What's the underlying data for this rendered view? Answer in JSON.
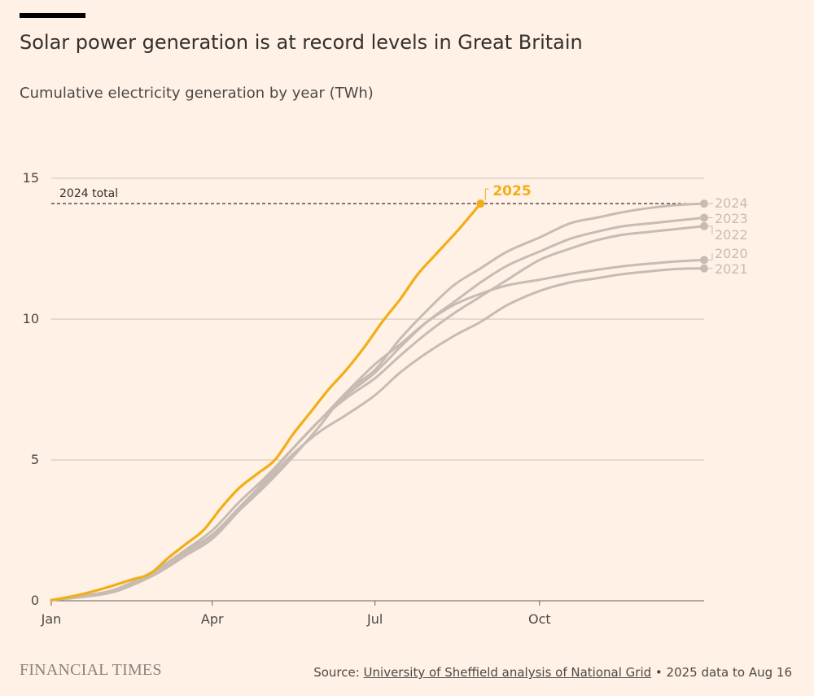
{
  "header": {
    "title": "Solar power generation is at record levels in Great Britain",
    "subtitle": "Cumulative electricity generation by year (TWh)"
  },
  "footer": {
    "logo": "FINANCIAL TIMES",
    "source_prefix": "Source: ",
    "source_link": "University of Sheffield analysis of National Grid",
    "source_suffix": " • 2025 data to Aug 16"
  },
  "colors": {
    "background": "#fff1e5",
    "highlight": "#f2ae18",
    "past_years": "#c7bcb4",
    "gridline": "#ccc1b7",
    "reference_line": "#33302e"
  },
  "chart_data": {
    "type": "line",
    "title": "Solar power generation is at record levels in Great Britain",
    "subtitle": "Cumulative electricity generation by year (TWh)",
    "xlabel": "",
    "ylabel": "",
    "x_ticks": [
      {
        "label": "Jan",
        "day": 0
      },
      {
        "label": "Apr",
        "day": 90
      },
      {
        "label": "Jul",
        "day": 181
      },
      {
        "label": "Oct",
        "day": 273
      }
    ],
    "y_ticks": [
      0,
      5,
      10,
      15
    ],
    "ylim": [
      0,
      15
    ],
    "xlim_days": [
      0,
      365
    ],
    "grid": true,
    "legend": "direct labels at line ends (right)",
    "reference_line": {
      "label": "2024 total",
      "value": 14.1
    },
    "series": [
      {
        "name": "2020",
        "highlight": false,
        "points": [
          [
            0,
            0.02
          ],
          [
            30,
            0.25
          ],
          [
            45,
            0.6
          ],
          [
            60,
            1.1
          ],
          [
            75,
            1.7
          ],
          [
            90,
            2.3
          ],
          [
            105,
            3.3
          ],
          [
            120,
            4.3
          ],
          [
            135,
            5.4
          ],
          [
            150,
            6.4
          ],
          [
            165,
            7.4
          ],
          [
            181,
            8.4
          ],
          [
            195,
            9.1
          ],
          [
            210,
            9.9
          ],
          [
            225,
            10.5
          ],
          [
            240,
            10.9
          ],
          [
            255,
            11.2
          ],
          [
            273,
            11.4
          ],
          [
            290,
            11.6
          ],
          [
            305,
            11.75
          ],
          [
            320,
            11.88
          ],
          [
            335,
            11.97
          ],
          [
            350,
            12.05
          ],
          [
            365,
            12.1
          ]
        ]
      },
      {
        "name": "2021",
        "highlight": false,
        "points": [
          [
            0,
            0.02
          ],
          [
            30,
            0.25
          ],
          [
            45,
            0.55
          ],
          [
            60,
            1.0
          ],
          [
            75,
            1.6
          ],
          [
            90,
            2.2
          ],
          [
            105,
            3.2
          ],
          [
            120,
            4.2
          ],
          [
            135,
            5.2
          ],
          [
            150,
            6.0
          ],
          [
            165,
            6.6
          ],
          [
            181,
            7.3
          ],
          [
            195,
            8.1
          ],
          [
            210,
            8.8
          ],
          [
            225,
            9.4
          ],
          [
            240,
            9.9
          ],
          [
            255,
            10.5
          ],
          [
            273,
            11.0
          ],
          [
            290,
            11.3
          ],
          [
            305,
            11.45
          ],
          [
            320,
            11.6
          ],
          [
            335,
            11.7
          ],
          [
            350,
            11.78
          ],
          [
            365,
            11.8
          ]
        ]
      },
      {
        "name": "2022",
        "highlight": false,
        "points": [
          [
            0,
            0.02
          ],
          [
            30,
            0.3
          ],
          [
            45,
            0.65
          ],
          [
            60,
            1.15
          ],
          [
            75,
            1.75
          ],
          [
            90,
            2.35
          ],
          [
            105,
            3.3
          ],
          [
            120,
            4.3
          ],
          [
            135,
            5.4
          ],
          [
            150,
            6.4
          ],
          [
            165,
            7.2
          ],
          [
            181,
            7.9
          ],
          [
            195,
            8.7
          ],
          [
            210,
            9.5
          ],
          [
            225,
            10.2
          ],
          [
            240,
            10.8
          ],
          [
            255,
            11.4
          ],
          [
            273,
            12.1
          ],
          [
            290,
            12.5
          ],
          [
            305,
            12.8
          ],
          [
            320,
            13.0
          ],
          [
            335,
            13.1
          ],
          [
            350,
            13.2
          ],
          [
            365,
            13.3
          ]
        ]
      },
      {
        "name": "2023",
        "highlight": false,
        "points": [
          [
            0,
            0.02
          ],
          [
            30,
            0.3
          ],
          [
            45,
            0.65
          ],
          [
            60,
            1.15
          ],
          [
            75,
            1.8
          ],
          [
            90,
            2.5
          ],
          [
            105,
            3.5
          ],
          [
            120,
            4.4
          ],
          [
            135,
            5.4
          ],
          [
            150,
            6.4
          ],
          [
            165,
            7.3
          ],
          [
            181,
            8.1
          ],
          [
            195,
            9.0
          ],
          [
            210,
            9.9
          ],
          [
            225,
            10.6
          ],
          [
            240,
            11.3
          ],
          [
            255,
            11.9
          ],
          [
            273,
            12.4
          ],
          [
            290,
            12.85
          ],
          [
            305,
            13.1
          ],
          [
            320,
            13.3
          ],
          [
            335,
            13.4
          ],
          [
            350,
            13.5
          ],
          [
            365,
            13.6
          ]
        ]
      },
      {
        "name": "2024",
        "highlight": false,
        "points": [
          [
            0,
            0.02
          ],
          [
            30,
            0.25
          ],
          [
            45,
            0.55
          ],
          [
            60,
            1.05
          ],
          [
            75,
            1.7
          ],
          [
            90,
            2.3
          ],
          [
            105,
            3.2
          ],
          [
            120,
            4.1
          ],
          [
            135,
            5.1
          ],
          [
            150,
            6.2
          ],
          [
            165,
            7.4
          ],
          [
            181,
            8.2
          ],
          [
            195,
            9.3
          ],
          [
            210,
            10.3
          ],
          [
            225,
            11.2
          ],
          [
            240,
            11.8
          ],
          [
            255,
            12.4
          ],
          [
            273,
            12.9
          ],
          [
            290,
            13.4
          ],
          [
            305,
            13.6
          ],
          [
            320,
            13.8
          ],
          [
            335,
            13.95
          ],
          [
            350,
            14.05
          ],
          [
            365,
            14.1
          ]
        ]
      },
      {
        "name": "2025",
        "highlight": true,
        "points": [
          [
            0,
            0.02
          ],
          [
            15,
            0.2
          ],
          [
            30,
            0.45
          ],
          [
            45,
            0.75
          ],
          [
            55,
            0.95
          ],
          [
            65,
            1.5
          ],
          [
            75,
            2.0
          ],
          [
            85,
            2.5
          ],
          [
            95,
            3.3
          ],
          [
            105,
            4.0
          ],
          [
            115,
            4.5
          ],
          [
            125,
            5.0
          ],
          [
            135,
            5.9
          ],
          [
            145,
            6.7
          ],
          [
            155,
            7.5
          ],
          [
            165,
            8.2
          ],
          [
            175,
            9.0
          ],
          [
            185,
            9.9
          ],
          [
            195,
            10.7
          ],
          [
            205,
            11.6
          ],
          [
            215,
            12.3
          ],
          [
            228,
            13.2
          ],
          [
            240,
            14.1
          ]
        ]
      }
    ]
  }
}
